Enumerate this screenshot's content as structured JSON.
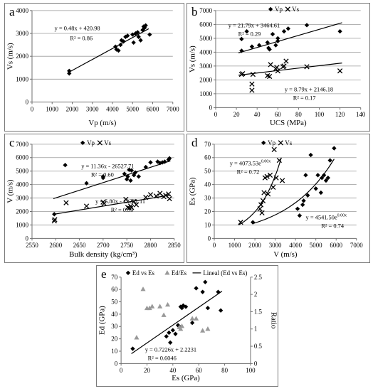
{
  "chart_data": [
    {
      "id": "a",
      "panel_label": "a",
      "type": "scatter",
      "xlabel": "Vp (m/s)",
      "ylabel": "Vs (m/s)",
      "xlim": [
        0,
        7000
      ],
      "ylim": [
        0,
        4000
      ],
      "xticks": [
        0,
        1000,
        2000,
        3000,
        4000,
        5000,
        6000,
        7000
      ],
      "yticks": [
        0,
        1000,
        2000,
        3000,
        4000
      ],
      "grid": "horizontal",
      "legend": "none",
      "series": [
        {
          "marker": "diamond",
          "color": "#000000",
          "points": [
            [
              1850,
              1250
            ],
            [
              1850,
              1360
            ],
            [
              4150,
              2420
            ],
            [
              4200,
              2300
            ],
            [
              4300,
              2250
            ],
            [
              4400,
              2500
            ],
            [
              4450,
              2700
            ],
            [
              4550,
              2650
            ],
            [
              4650,
              2850
            ],
            [
              4750,
              2900
            ],
            [
              5000,
              2950
            ],
            [
              5050,
              2600
            ],
            [
              5150,
              3000
            ],
            [
              5250,
              3050
            ],
            [
              5300,
              2850
            ],
            [
              5400,
              2700
            ],
            [
              5500,
              3150
            ],
            [
              5550,
              3300
            ],
            [
              5600,
              3250
            ],
            [
              5650,
              3350
            ],
            [
              5850,
              2950
            ]
          ]
        }
      ],
      "trendlines": [
        {
          "type": "linear",
          "equation": "y = 0.48x + 420.98",
          "r2": "R² = 0.86",
          "slope": 0.48,
          "intercept": 420.98,
          "xrange": [
            1800,
            5800
          ]
        }
      ]
    },
    {
      "id": "b",
      "panel_label": "b",
      "type": "scatter",
      "xlabel": "UCS (MPa)",
      "ylabel": "Vs (m/s)",
      "xlim": [
        0,
        140
      ],
      "ylim": [
        0,
        7000
      ],
      "xticks": [
        0,
        20,
        40,
        60,
        80,
        100,
        120,
        140
      ],
      "yticks": [
        0,
        1000,
        2000,
        3000,
        4000,
        5000,
        6000,
        7000
      ],
      "grid": "horizontal",
      "legend": "top",
      "series": [
        {
          "name": "Vp",
          "marker": "diamond",
          "color": "#000000",
          "points": [
            [
              25,
              4100
            ],
            [
              25,
              4950
            ],
            [
              30,
              5500
            ],
            [
              35,
              4400
            ],
            [
              42,
              4500
            ],
            [
              50,
              4700
            ],
            [
              51,
              4300
            ],
            [
              52,
              4200
            ],
            [
              55,
              5300
            ],
            [
              58,
              4500
            ],
            [
              60,
              4800
            ],
            [
              60,
              5000
            ],
            [
              66,
              5500
            ],
            [
              70,
              5700
            ],
            [
              88,
              5950
            ],
            [
              120,
              5500
            ]
          ]
        },
        {
          "name": "Vs",
          "marker": "x",
          "color": "#000000",
          "points": [
            [
              25,
              2400
            ],
            [
              26,
              2450
            ],
            [
              35,
              1250
            ],
            [
              35,
              1700
            ],
            [
              36,
              2400
            ],
            [
              50,
              2300
            ],
            [
              52,
              2250
            ],
            [
              53,
              3100
            ],
            [
              58,
              2800
            ],
            [
              59,
              2900
            ],
            [
              60,
              2650
            ],
            [
              65,
              2950
            ],
            [
              66,
              3000
            ],
            [
              68,
              3350
            ],
            [
              88,
              2950
            ],
            [
              120,
              2650
            ]
          ]
        }
      ],
      "trendlines": [
        {
          "type": "linear",
          "equation": "y = 21.79x + 3464.61",
          "r2": "R² = 0.29",
          "slope": 21.79,
          "intercept": 3464.61,
          "xrange": [
            22,
            122
          ]
        },
        {
          "type": "linear",
          "equation": "y = 8.79x + 2146.18",
          "r2": "R² = 0.17",
          "slope": 8.79,
          "intercept": 2146.18,
          "xrange": [
            22,
            122
          ]
        }
      ]
    },
    {
      "id": "c",
      "panel_label": "c",
      "type": "scatter",
      "xlabel": "Bulk density (kg/cm³)",
      "ylabel": "V (m/s)",
      "xlim": [
        2550,
        2850
      ],
      "ylim": [
        0,
        7000
      ],
      "xticks": [
        2550,
        2600,
        2650,
        2700,
        2750,
        2800,
        2850
      ],
      "yticks": [
        0,
        1000,
        2000,
        3000,
        4000,
        5000,
        6000,
        7000
      ],
      "grid": "horizontal",
      "legend": "top",
      "series": [
        {
          "name": "Vp",
          "marker": "diamond",
          "color": "#000000",
          "points": [
            [
              2597,
              1800
            ],
            [
              2620,
              5450
            ],
            [
              2665,
              4100
            ],
            [
              2700,
              4500
            ],
            [
              2700,
              4600
            ],
            [
              2745,
              4800
            ],
            [
              2750,
              4400
            ],
            [
              2752,
              4600
            ],
            [
              2755,
              5100
            ],
            [
              2758,
              4300
            ],
            [
              2760,
              5050
            ],
            [
              2765,
              4700
            ],
            [
              2768,
              4900
            ],
            [
              2775,
              4600
            ],
            [
              2790,
              5300
            ],
            [
              2800,
              5650
            ],
            [
              2815,
              5700
            ],
            [
              2820,
              5600
            ],
            [
              2825,
              5650
            ],
            [
              2830,
              5700
            ],
            [
              2838,
              5850
            ],
            [
              2840,
              5950
            ]
          ]
        },
        {
          "name": "Vs",
          "marker": "x",
          "color": "#000000",
          "points": [
            [
              2597,
              1300
            ],
            [
              2598,
              1400
            ],
            [
              2622,
              2650
            ],
            [
              2665,
              2400
            ],
            [
              2700,
              2700
            ],
            [
              2702,
              2600
            ],
            [
              2748,
              2900
            ],
            [
              2752,
              2300
            ],
            [
              2755,
              2250
            ],
            [
              2758,
              2400
            ],
            [
              2760,
              2300
            ],
            [
              2765,
              2750
            ],
            [
              2770,
              2500
            ],
            [
              2790,
              3050
            ],
            [
              2800,
              3250
            ],
            [
              2812,
              3150
            ],
            [
              2820,
              3350
            ],
            [
              2828,
              3100
            ],
            [
              2832,
              3200
            ],
            [
              2838,
              3300
            ],
            [
              2840,
              2950
            ]
          ]
        }
      ],
      "trendlines": [
        {
          "type": "linear",
          "equation": "y = 11.36x - 26527.71",
          "r2": "R² = 0.60",
          "slope": 11.36,
          "intercept": -26527.71,
          "xrange": [
            2595,
            2842
          ]
        },
        {
          "type": "linear",
          "equation": "y = 5.80x - 13261.11",
          "r2": "R² = 0.59",
          "slope": 5.8,
          "intercept": -13261.11,
          "xrange": [
            2595,
            2842
          ]
        }
      ]
    },
    {
      "id": "d",
      "panel_label": "d",
      "type": "scatter",
      "xlabel": "V (m/s)",
      "ylabel": "Es (GPa)",
      "xlim": [
        0,
        7000
      ],
      "ylim": [
        0,
        70
      ],
      "xticks": [
        0,
        1000,
        2000,
        3000,
        4000,
        5000,
        6000,
        7000
      ],
      "yticks": [
        0,
        10,
        20,
        30,
        40,
        50,
        60,
        70
      ],
      "grid": "horizontal",
      "legend": "top",
      "series": [
        {
          "name": "Vp",
          "marker": "diamond",
          "color": "#000000",
          "points": [
            [
              1900,
              12
            ],
            [
              4100,
              22
            ],
            [
              4200,
              17
            ],
            [
              4350,
              25
            ],
            [
              4400,
              28
            ],
            [
              4500,
              47
            ],
            [
              4600,
              32
            ],
            [
              4750,
              62
            ],
            [
              5000,
              37
            ],
            [
              5100,
              47
            ],
            [
              5250,
              34
            ],
            [
              5300,
              45
            ],
            [
              5400,
              47
            ],
            [
              5500,
              43
            ],
            [
              5600,
              45
            ],
            [
              5700,
              58
            ],
            [
              5900,
              67
            ]
          ]
        },
        {
          "name": "Vs",
          "marker": "x",
          "color": "#000000",
          "points": [
            [
              1300,
              12
            ],
            [
              2250,
              22
            ],
            [
              2300,
              25
            ],
            [
              2350,
              19
            ],
            [
              2400,
              28
            ],
            [
              2450,
              34
            ],
            [
              2500,
              45
            ],
            [
              2600,
              46
            ],
            [
              2650,
              33
            ],
            [
              2750,
              47
            ],
            [
              2900,
              38
            ],
            [
              2950,
              66
            ],
            [
              3050,
              45
            ],
            [
              3200,
              58
            ],
            [
              3350,
              43
            ]
          ]
        }
      ],
      "trendlines": [
        {
          "type": "exponential",
          "equation": "y = 4073.53e^{0.00x}",
          "equation_base": "y = 4073.53e",
          "equation_exp": "0.00x",
          "r2": "R² = 0.72",
          "xrange": [
            1200,
            3300
          ],
          "yrange": [
            10,
            60
          ]
        },
        {
          "type": "exponential",
          "equation": "y = 4541.50e^{0.00x}",
          "equation_base": "y = 4541.50e",
          "equation_exp": "0.00x",
          "r2": "R² = 0.74",
          "xrange": [
            1900,
            5900
          ],
          "yrange": [
            11,
            59
          ]
        }
      ]
    },
    {
      "id": "e",
      "panel_label": "e",
      "type": "scatter",
      "xlabel": "Es (GPa)",
      "ylabel": "Ed (GPa)",
      "y2label": "Ratio",
      "xlim": [
        0,
        100
      ],
      "ylim": [
        0,
        70
      ],
      "y2lim": [
        0,
        2.5
      ],
      "xticks": [
        0,
        20,
        40,
        60,
        80,
        100
      ],
      "yticks": [
        0,
        10,
        20,
        30,
        40,
        50,
        60,
        70
      ],
      "y2ticks": [
        0,
        0.5,
        1,
        1.5,
        2,
        2.5
      ],
      "y2ticklabels": [
        "0",
        "0.5",
        "1",
        "1.5",
        "2",
        "2.5"
      ],
      "grid": "none",
      "legend": "top",
      "series": [
        {
          "name": "Ed vs Es",
          "marker": "diamond",
          "color": "#000000",
          "axis": "left",
          "points": [
            [
              9,
              12
            ],
            [
              35,
              22
            ],
            [
              37,
              25
            ],
            [
              38,
              17
            ],
            [
              40,
              27
            ],
            [
              42,
              24
            ],
            [
              44,
              31
            ],
            [
              45,
              30
            ],
            [
              46,
              46
            ],
            [
              47,
              45
            ],
            [
              48,
              47
            ],
            [
              50,
              46
            ],
            [
              55,
              33
            ],
            [
              58,
              61
            ],
            [
              63,
              58
            ],
            [
              65,
              66
            ],
            [
              67,
              45
            ],
            [
              75,
              58
            ],
            [
              77,
              43
            ]
          ]
        },
        {
          "name": "Ed/Es",
          "marker": "triangle",
          "color": "#999999",
          "axis": "right",
          "points": [
            [
              12,
              0.75
            ],
            [
              17,
              2.15
            ],
            [
              20,
              1.6
            ],
            [
              22,
              1.6
            ],
            [
              24,
              1.65
            ],
            [
              30,
              1.65
            ],
            [
              33,
              1.4
            ],
            [
              36,
              1.7
            ],
            [
              45,
              1.05
            ],
            [
              46,
              1.0
            ],
            [
              47,
              1.08
            ],
            [
              55,
              1.3
            ],
            [
              58,
              1.3
            ],
            [
              63,
              0.95
            ],
            [
              67,
              1.0
            ]
          ]
        }
      ],
      "trendlines": [
        {
          "name": "Lineal (Ed vs Es)",
          "type": "linear",
          "equation": "y = 0.7226x + 2.2231",
          "r2": "R² = 0.6046",
          "slope": 0.7226,
          "intercept": 2.2231,
          "xrange": [
            8,
            78
          ]
        }
      ]
    }
  ]
}
